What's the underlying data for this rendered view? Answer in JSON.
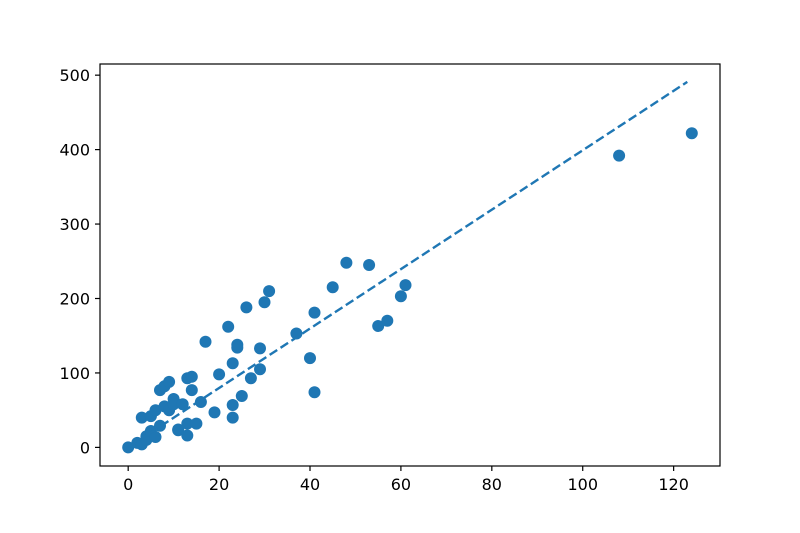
{
  "chart_data": {
    "type": "scatter",
    "title": "",
    "xlabel": "",
    "ylabel": "",
    "xlim": [
      -6.2,
      130.2
    ],
    "ylim": [
      -25,
      515
    ],
    "x_ticks": [
      0,
      20,
      40,
      60,
      80,
      100,
      120
    ],
    "y_ticks": [
      0,
      100,
      200,
      300,
      400,
      500
    ],
    "grid": false,
    "legend": "none",
    "colors": {
      "points": "#1f77b4",
      "trend_line": "#1f77b4",
      "axes": "#000000"
    },
    "series": [
      {
        "kind": "points",
        "x": [
          0,
          2,
          3,
          3,
          4,
          4,
          5,
          5,
          6,
          6,
          7,
          7,
          8,
          8,
          9,
          9,
          10,
          10,
          11,
          11,
          12,
          13,
          13,
          13,
          14,
          14,
          15,
          16,
          17,
          19,
          20,
          22,
          23,
          23,
          23,
          24,
          24,
          25,
          26,
          27,
          29,
          29,
          30,
          31,
          37,
          40,
          41,
          41,
          45,
          48,
          53,
          55,
          57,
          60,
          61,
          108,
          124
        ],
        "y": [
          0,
          6,
          4,
          40,
          15,
          10,
          42,
          22,
          14,
          50,
          77,
          29,
          55,
          82,
          50,
          88,
          65,
          58,
          23,
          24,
          58,
          93,
          16,
          32,
          95,
          77,
          32,
          61,
          142,
          47,
          98,
          162,
          40,
          57,
          113,
          138,
          134,
          69,
          188,
          93,
          105,
          133,
          195,
          210,
          153,
          120,
          181,
          74,
          215,
          248,
          245,
          163,
          170,
          203,
          218,
          392,
          422
        ]
      },
      {
        "kind": "trend_line",
        "style": "dashed",
        "x": [
          0,
          123
        ],
        "y": [
          0,
          491
        ]
      }
    ]
  }
}
